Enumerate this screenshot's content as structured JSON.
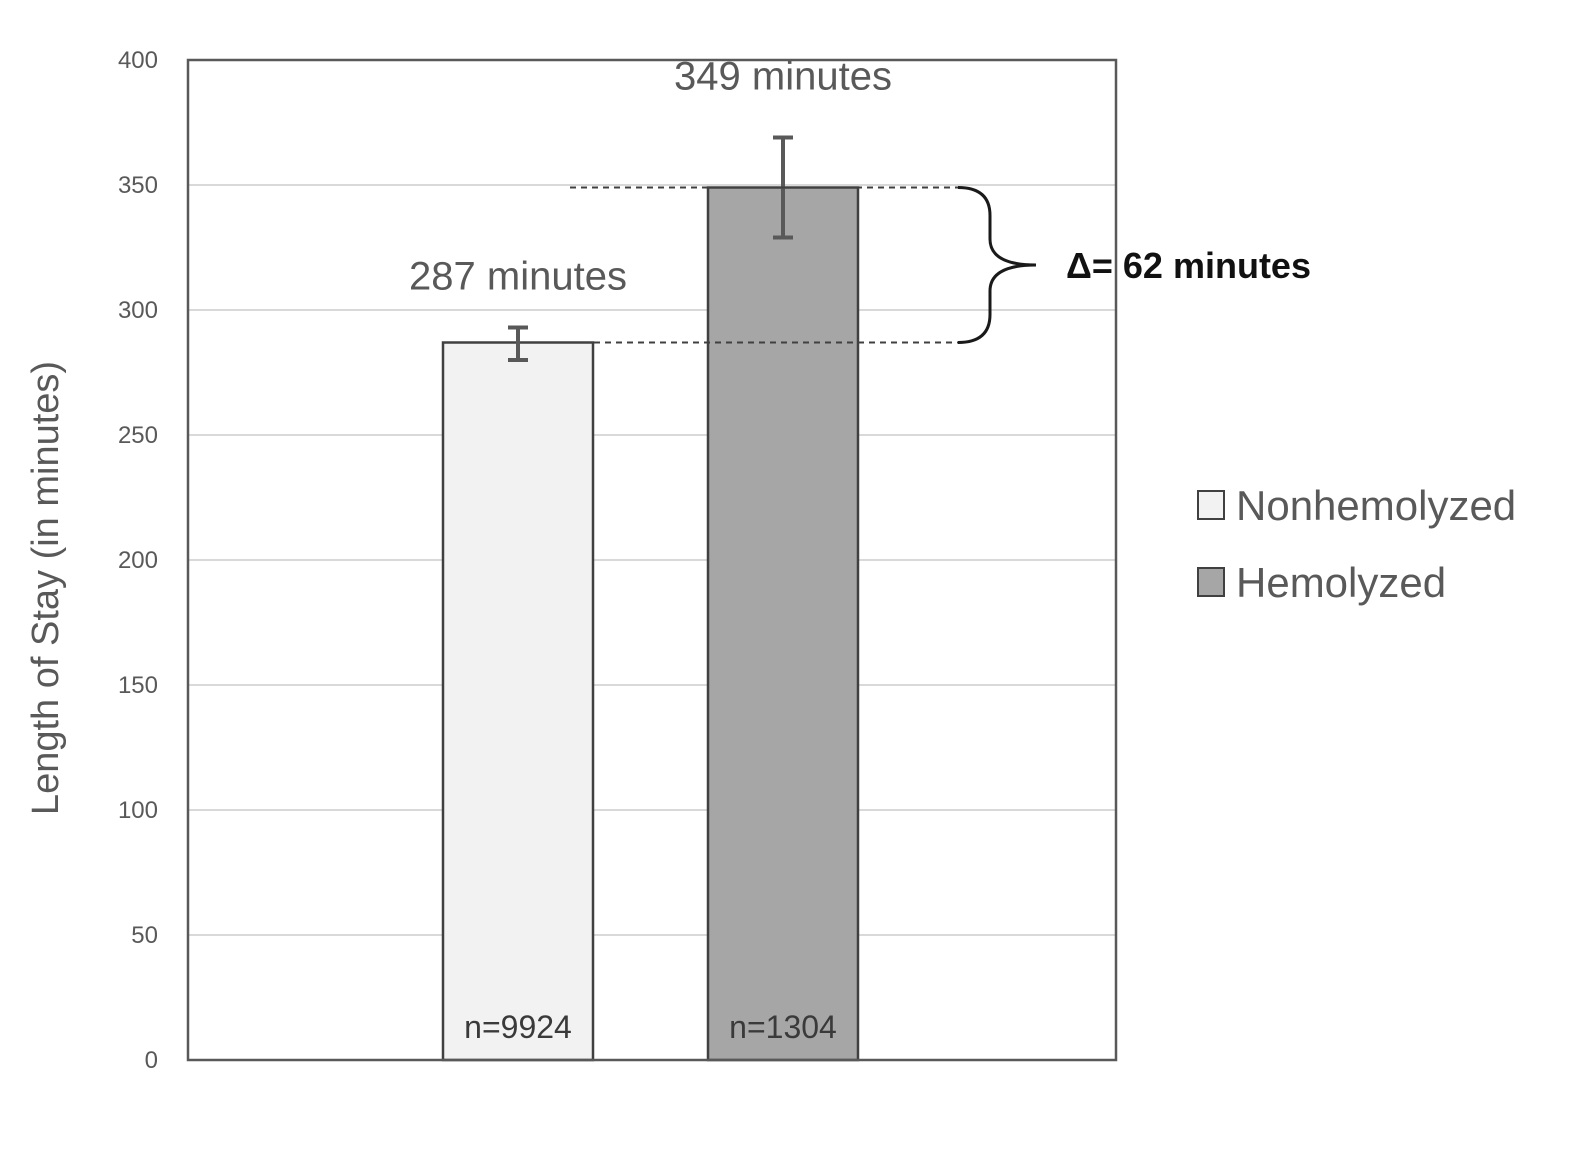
{
  "chart_data": {
    "type": "bar",
    "categories": [
      "Nonhemolyzed",
      "Hemolyzed"
    ],
    "values": [
      287,
      349
    ],
    "error_bars": [
      {
        "low": 280,
        "high": 293
      },
      {
        "low": 329,
        "high": 369
      }
    ],
    "value_labels": [
      "287 minutes",
      "349 minutes"
    ],
    "sample_labels": [
      "n=9924",
      "n=1304"
    ],
    "colors": [
      "#f2f2f2",
      "#a6a6a6"
    ],
    "ylabel": "Length of Stay (in minutes)",
    "ylim": [
      0,
      400
    ],
    "yticks": [
      0,
      50,
      100,
      150,
      200,
      250,
      300,
      350,
      400
    ],
    "grid": true,
    "legend_position": "right",
    "legend": [
      {
        "label": "Nonhemolyzed",
        "color": "#f2f2f2"
      },
      {
        "label": "Hemolyzed",
        "color": "#a6a6a6"
      }
    ],
    "annotation": {
      "text": "Δ= 62 minutes",
      "from_value": 287,
      "to_value": 349
    }
  }
}
